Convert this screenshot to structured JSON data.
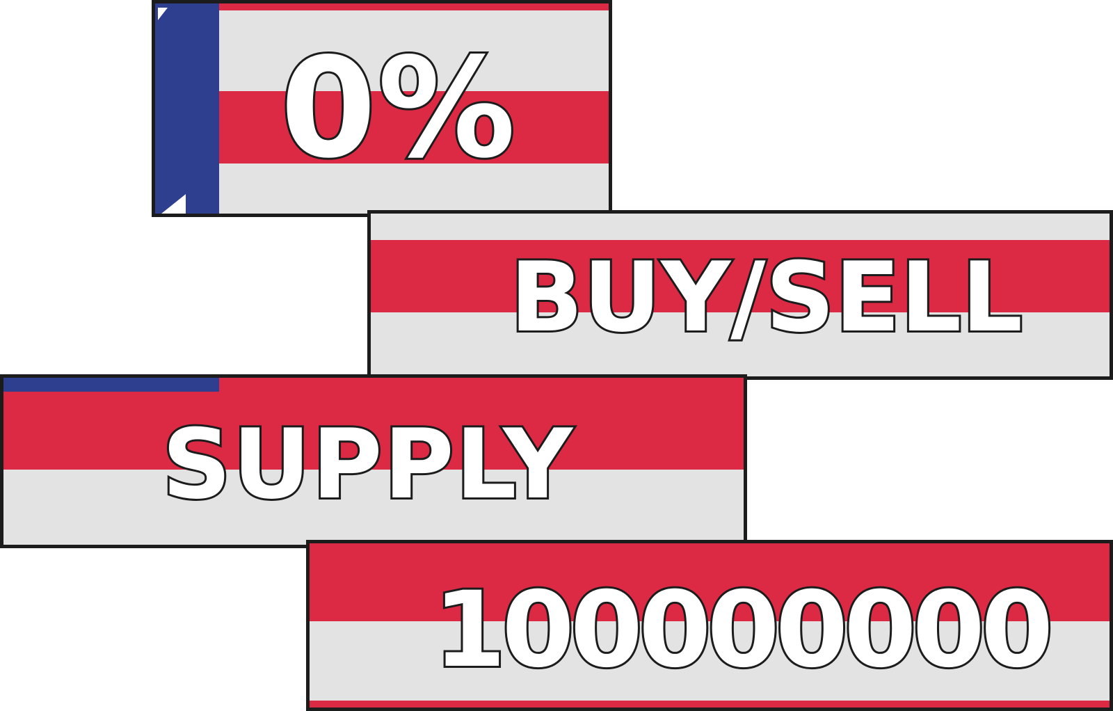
{
  "banners": {
    "fee": {
      "text": "0%"
    },
    "buy_sell": {
      "text": "BUY/SELL"
    },
    "supply_label": {
      "text": "SUPPLY"
    },
    "supply_value": {
      "text": "100000000"
    }
  },
  "colors": {
    "stripe_red": "#dd2a44",
    "stripe_white": "#e3e3e3",
    "canton_blue": "#2e3f8f",
    "outline": "#1c1c1c",
    "text_fill": "#ffffff"
  }
}
